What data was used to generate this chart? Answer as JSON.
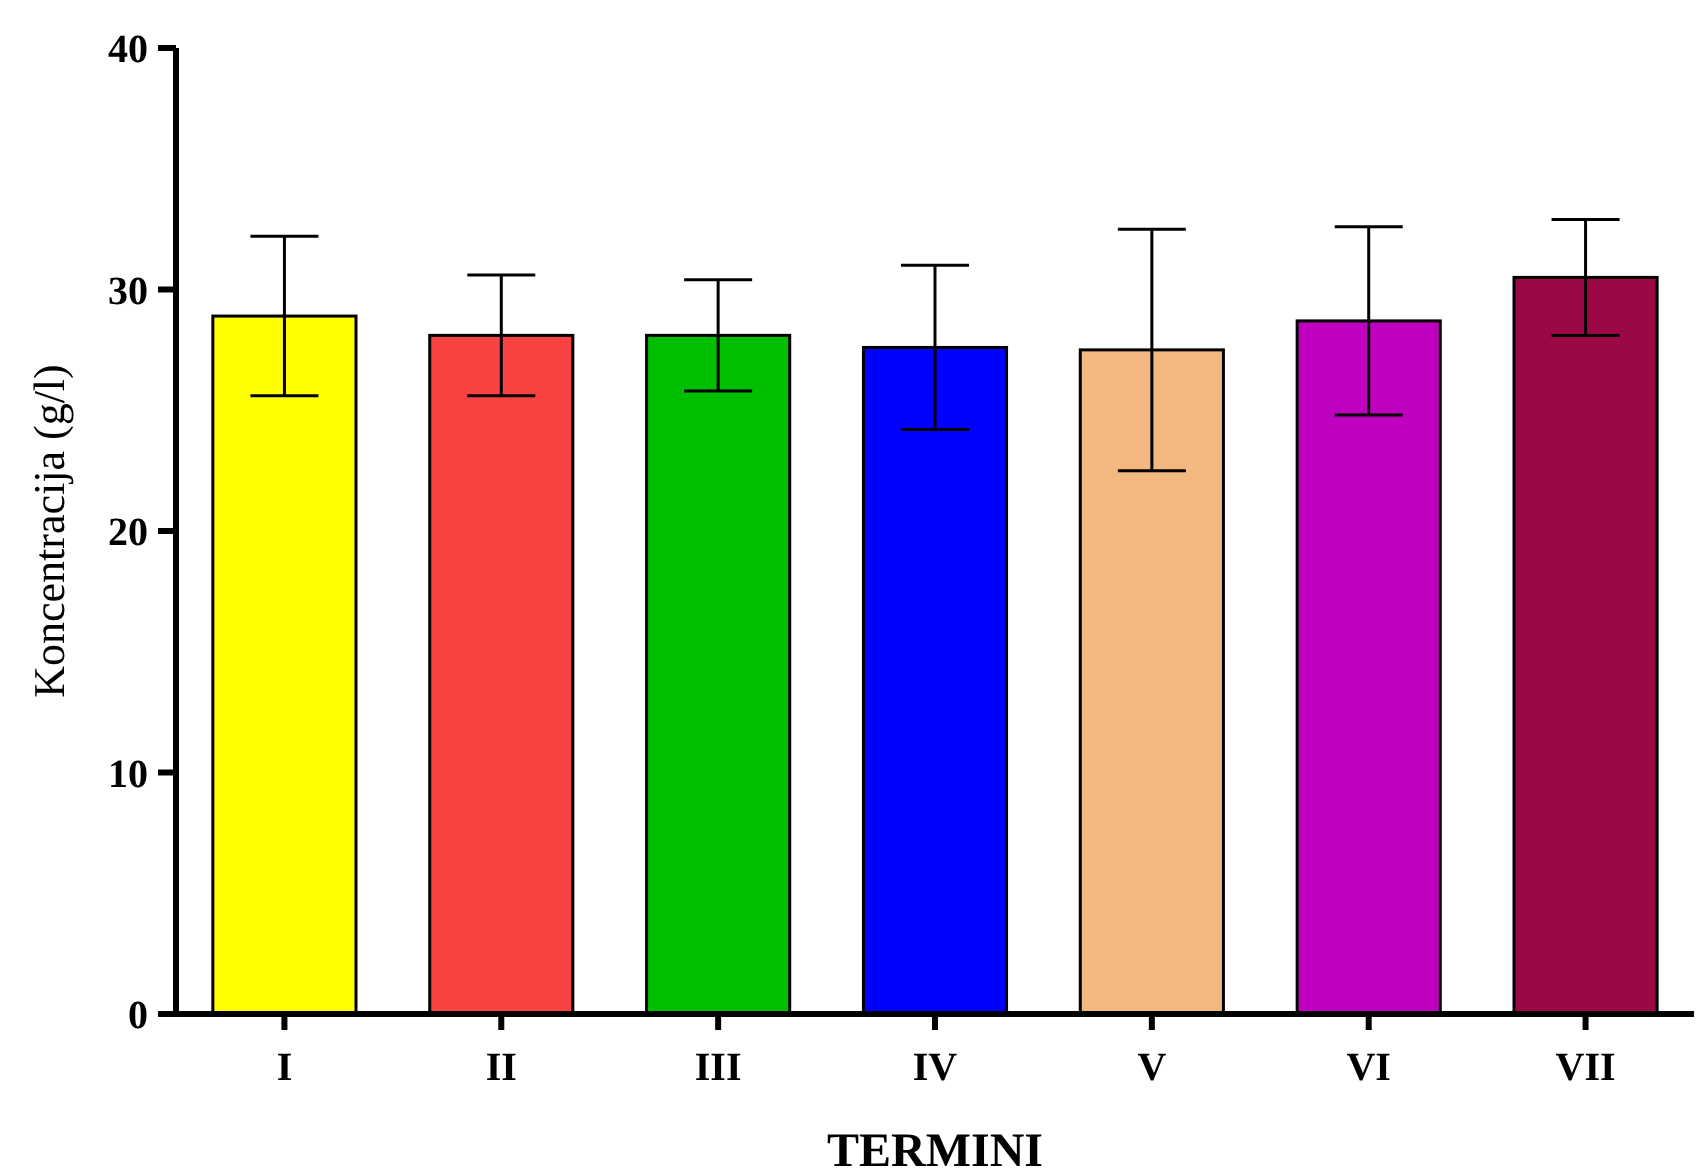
{
  "chart_data": {
    "type": "bar",
    "xlabel": "TERMINI",
    "ylabel": "Koncentracija (g/l)",
    "categories": [
      "I",
      "II",
      "III",
      "IV",
      "V",
      "VI",
      "VII"
    ],
    "values": [
      28.9,
      28.1,
      28.1,
      27.6,
      27.5,
      28.7,
      30.5
    ],
    "errors": [
      3.3,
      2.5,
      2.3,
      3.4,
      5.0,
      3.9,
      2.4
    ],
    "colors": [
      "#ffff00",
      "#f94343",
      "#00bf00",
      "#0000ff",
      "#f2b880",
      "#bf00bf",
      "#9c0746"
    ],
    "ylim": [
      0,
      40
    ],
    "yticks": [
      0,
      10,
      20,
      30,
      40
    ],
    "grid": false
  }
}
